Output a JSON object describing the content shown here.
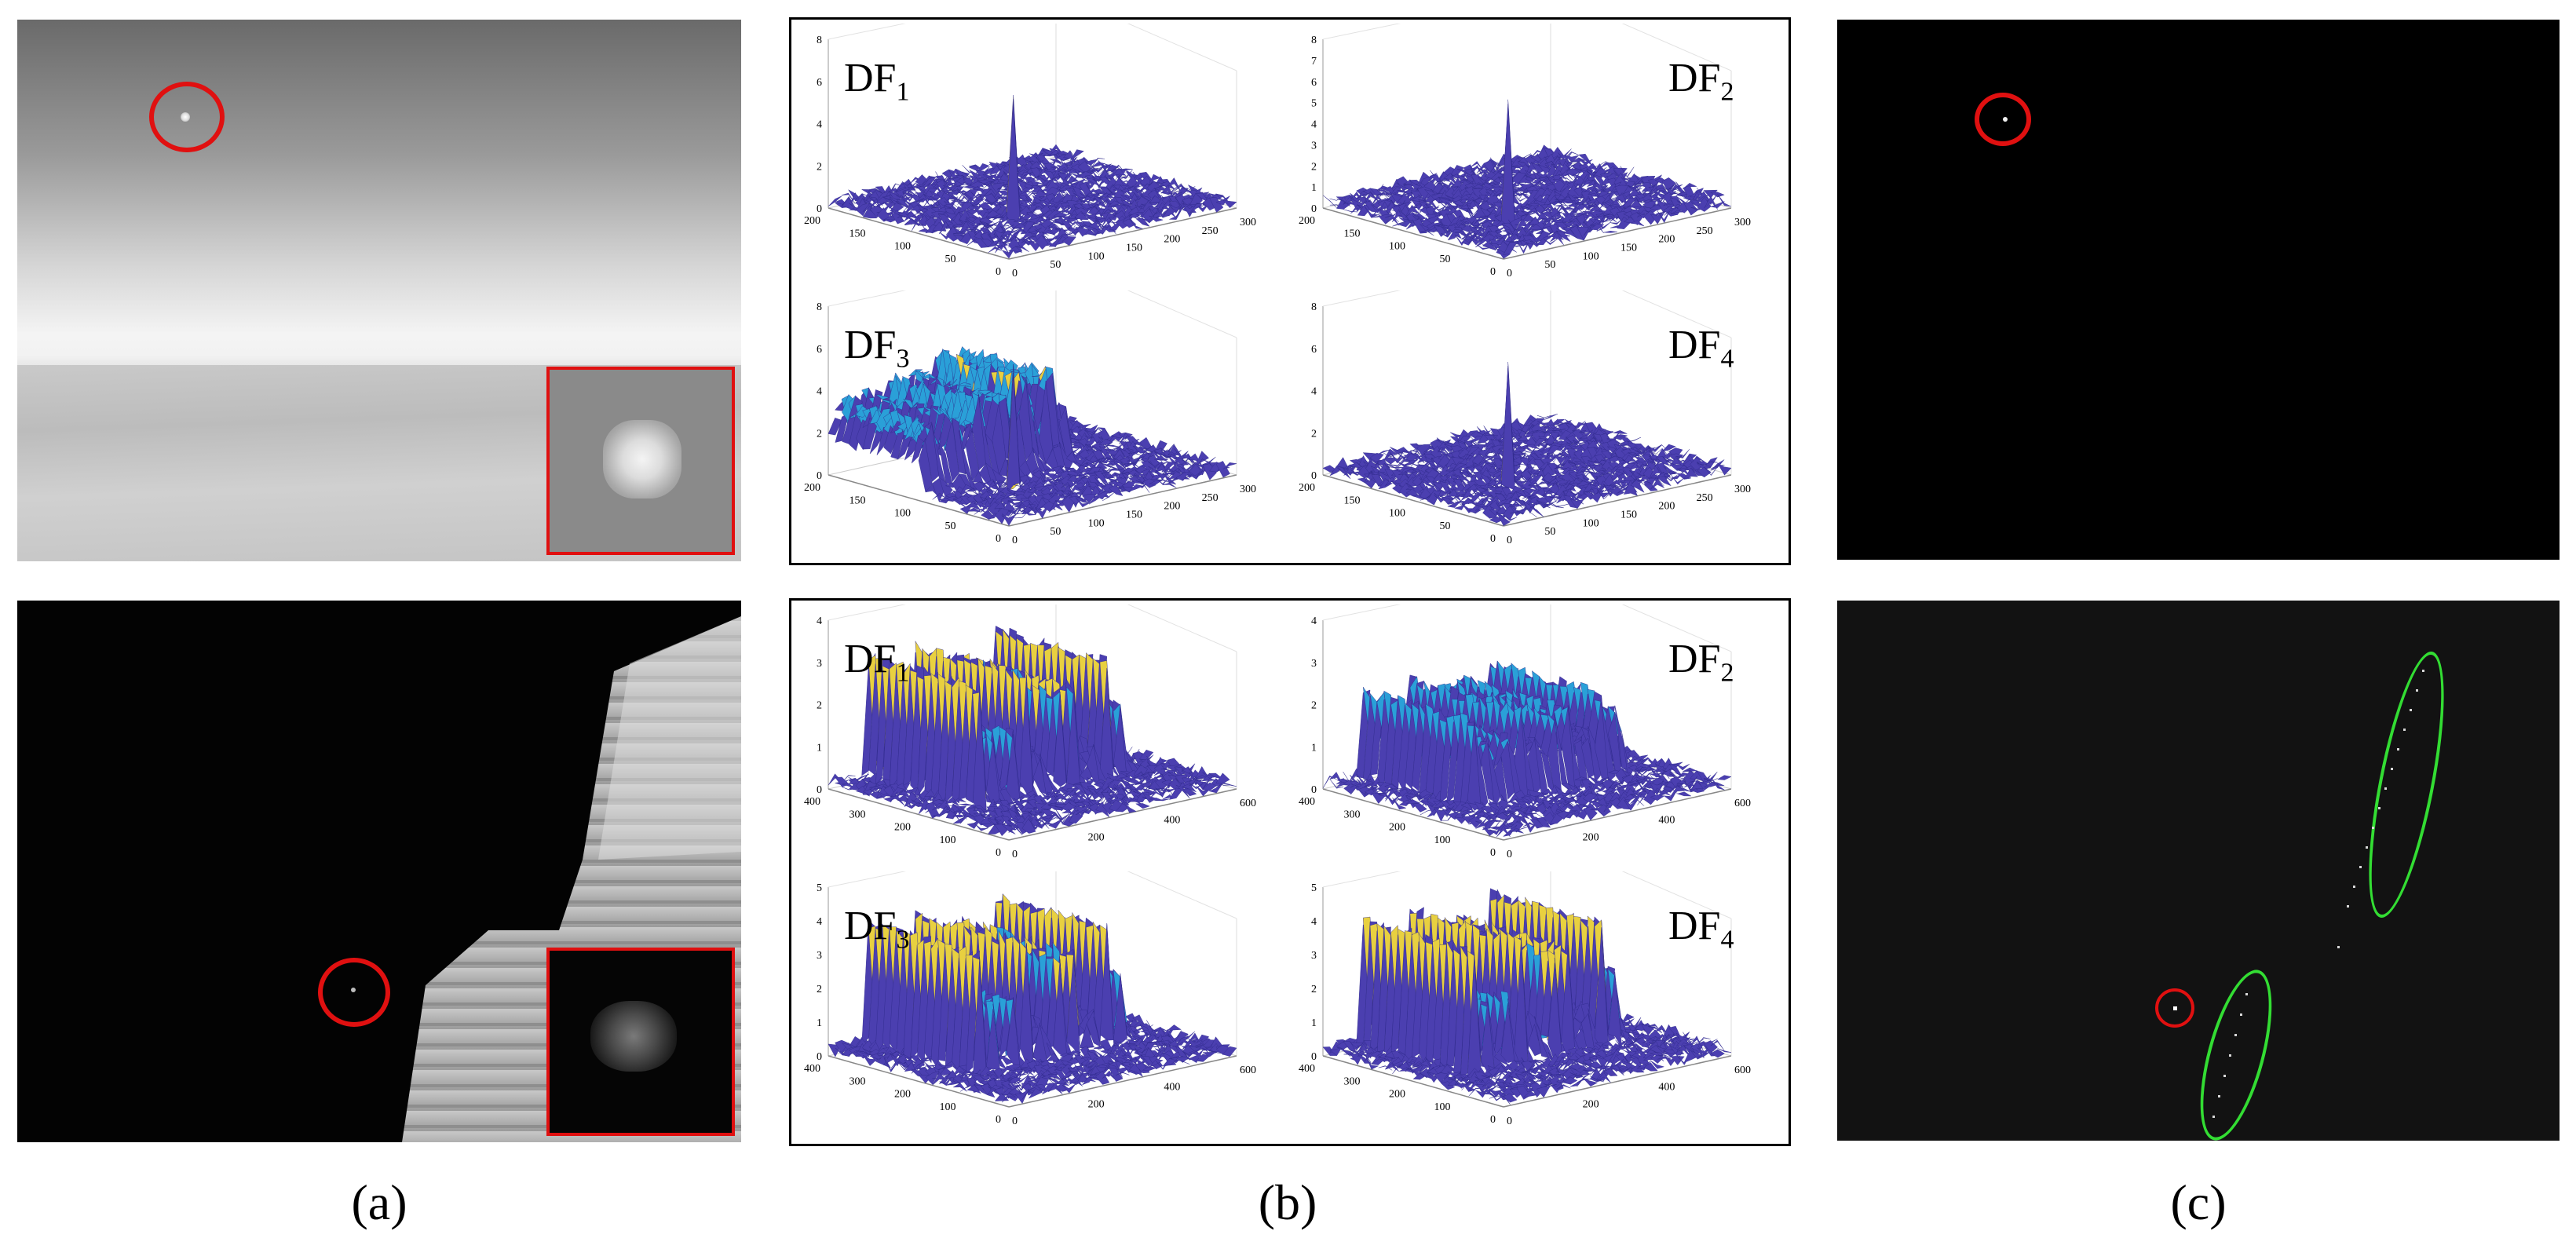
{
  "captions": {
    "a": "(a)",
    "b": "(b)",
    "c": "(c)"
  },
  "surface_plots": {
    "top": [
      {
        "label_base": "DF",
        "label_sub": "1",
        "z_ticks": [
          "0",
          "2",
          "4",
          "6",
          "8"
        ],
        "y_ticks": [
          "200",
          "150",
          "100",
          "50",
          "0"
        ],
        "x_ticks": [
          "0",
          "50",
          "100",
          "150",
          "200",
          "250",
          "300"
        ]
      },
      {
        "label_base": "DF",
        "label_sub": "2",
        "z_ticks": [
          "0",
          "1",
          "2",
          "3",
          "4",
          "5",
          "6",
          "7",
          "8"
        ],
        "y_ticks": [
          "200",
          "150",
          "100",
          "50",
          "0"
        ],
        "x_ticks": [
          "0",
          "50",
          "100",
          "150",
          "200",
          "250",
          "300"
        ]
      },
      {
        "label_base": "DF",
        "label_sub": "3",
        "z_ticks": [
          "0",
          "2",
          "4",
          "6",
          "8"
        ],
        "y_ticks": [
          "200",
          "150",
          "100",
          "50",
          "0"
        ],
        "x_ticks": [
          "0",
          "50",
          "100",
          "150",
          "200",
          "250",
          "300"
        ]
      },
      {
        "label_base": "DF",
        "label_sub": "4",
        "z_ticks": [
          "0",
          "2",
          "4",
          "6",
          "8"
        ],
        "y_ticks": [
          "200",
          "150",
          "100",
          "50",
          "0"
        ],
        "x_ticks": [
          "0",
          "50",
          "100",
          "150",
          "200",
          "250",
          "300"
        ]
      }
    ],
    "bottom": [
      {
        "label_base": "DF",
        "label_sub": "1",
        "z_ticks": [
          "0",
          "1",
          "2",
          "3",
          "4"
        ],
        "y_ticks": [
          "400",
          "300",
          "200",
          "100",
          "0"
        ],
        "x_ticks": [
          "0",
          "200",
          "400",
          "600"
        ]
      },
      {
        "label_base": "DF",
        "label_sub": "2",
        "z_ticks": [
          "0",
          "1",
          "2",
          "3",
          "4"
        ],
        "y_ticks": [
          "400",
          "300",
          "200",
          "100",
          "0"
        ],
        "x_ticks": [
          "0",
          "200",
          "400",
          "600"
        ]
      },
      {
        "label_base": "DF",
        "label_sub": "3",
        "z_ticks": [
          "0",
          "1",
          "2",
          "3",
          "4",
          "5"
        ],
        "y_ticks": [
          "400",
          "300",
          "200",
          "100",
          "0"
        ],
        "x_ticks": [
          "0",
          "200",
          "400",
          "600"
        ]
      },
      {
        "label_base": "DF",
        "label_sub": "4",
        "z_ticks": [
          "0",
          "1",
          "2",
          "3",
          "4",
          "5"
        ],
        "y_ticks": [
          "400",
          "300",
          "200",
          "100",
          "0"
        ],
        "x_ticks": [
          "0",
          "200",
          "400",
          "600"
        ]
      }
    ]
  },
  "colors": {
    "target_circle": "#e01010",
    "false_alarm_ellipse": "#33dd33",
    "surface_low": "#4b3fb0",
    "surface_mid": "#2aa0d8",
    "surface_high": "#e8d040"
  }
}
